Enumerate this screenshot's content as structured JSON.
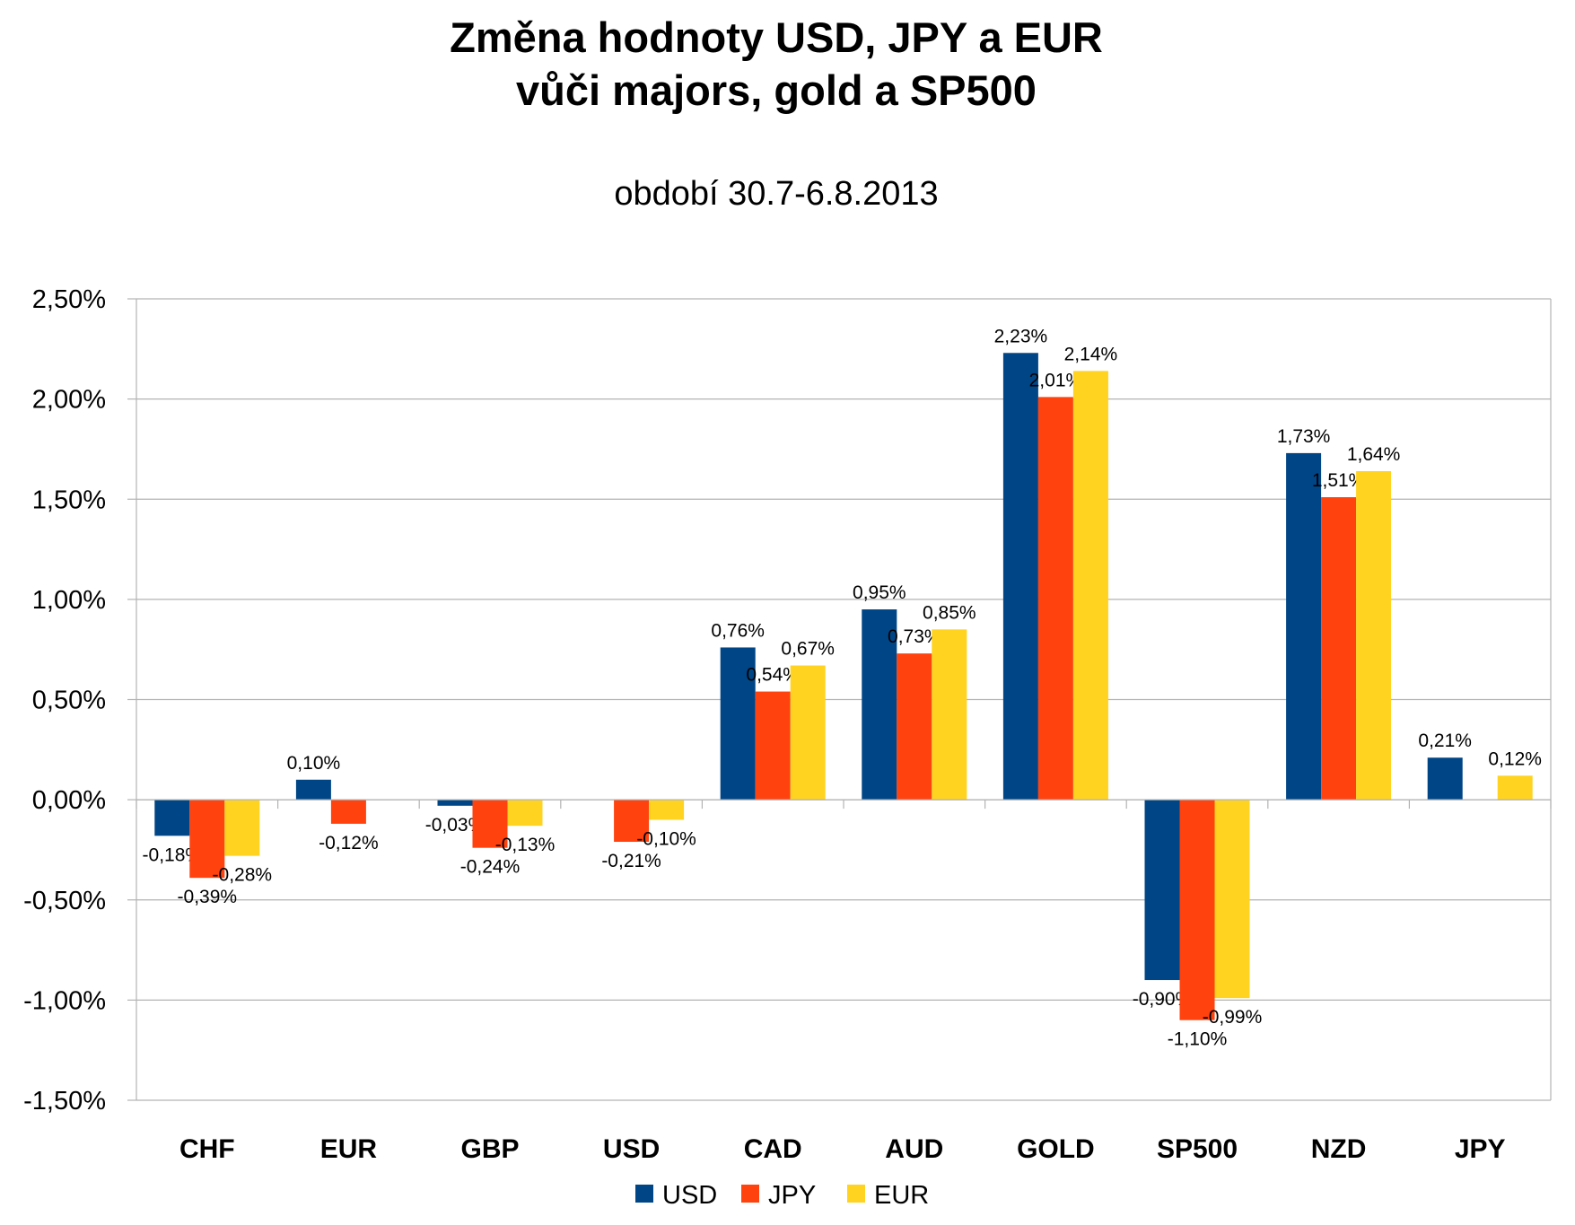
{
  "chart_data": {
    "type": "bar",
    "title_line1": "Změna hodnoty USD, JPY a EUR",
    "title_line2": "vůči majors, gold a SP500",
    "subtitle": "období 30.7-6.8.2013",
    "categories": [
      "CHF",
      "EUR",
      "GBP",
      "USD",
      "CAD",
      "AUD",
      "GOLD",
      "SP500",
      "NZD",
      "JPY"
    ],
    "series": [
      {
        "name": "USD",
        "color": "#004586",
        "values": [
          -0.18,
          0.1,
          -0.03,
          null,
          0.76,
          0.95,
          2.23,
          -0.9,
          1.73,
          0.21
        ]
      },
      {
        "name": "JPY",
        "color": "#ff420e",
        "values": [
          -0.39,
          -0.12,
          -0.24,
          -0.21,
          0.54,
          0.73,
          2.01,
          -1.1,
          1.51,
          null
        ]
      },
      {
        "name": "EUR",
        "color": "#ffd320",
        "values": [
          -0.28,
          null,
          -0.13,
          -0.1,
          0.67,
          0.85,
          2.14,
          -0.99,
          1.64,
          0.12
        ]
      }
    ],
    "labels": [
      [
        "-0,18%",
        "0,10%",
        "-0,03%",
        null,
        "0,76%",
        "0,95%",
        "2,23%",
        "-0,90%",
        "1,73%",
        "0,21%"
      ],
      [
        "-0,39%",
        "-0,12%",
        "-0,24%",
        "-0,21%",
        "0,54%",
        "0,73%",
        "2,01%",
        "-1,10%",
        "1,51%",
        null
      ],
      [
        "-0,28%",
        null,
        "-0,13%",
        "-0,10%",
        "0,67%",
        "0,85%",
        "2,14%",
        "-0,99%",
        "1,64%",
        "0,12%"
      ]
    ],
    "yticks": [
      2.5,
      2.0,
      1.5,
      1.0,
      0.5,
      0.0,
      -0.5,
      -1.0,
      -1.5
    ],
    "ytick_labels": [
      "2,50%",
      "2,00%",
      "1,50%",
      "1,00%",
      "0,50%",
      "0,00%",
      "-0,50%",
      "-1,00%",
      "-1,50%"
    ],
    "ylim": [
      -1.5,
      2.5
    ],
    "grid": true,
    "legend_position": "bottom"
  }
}
